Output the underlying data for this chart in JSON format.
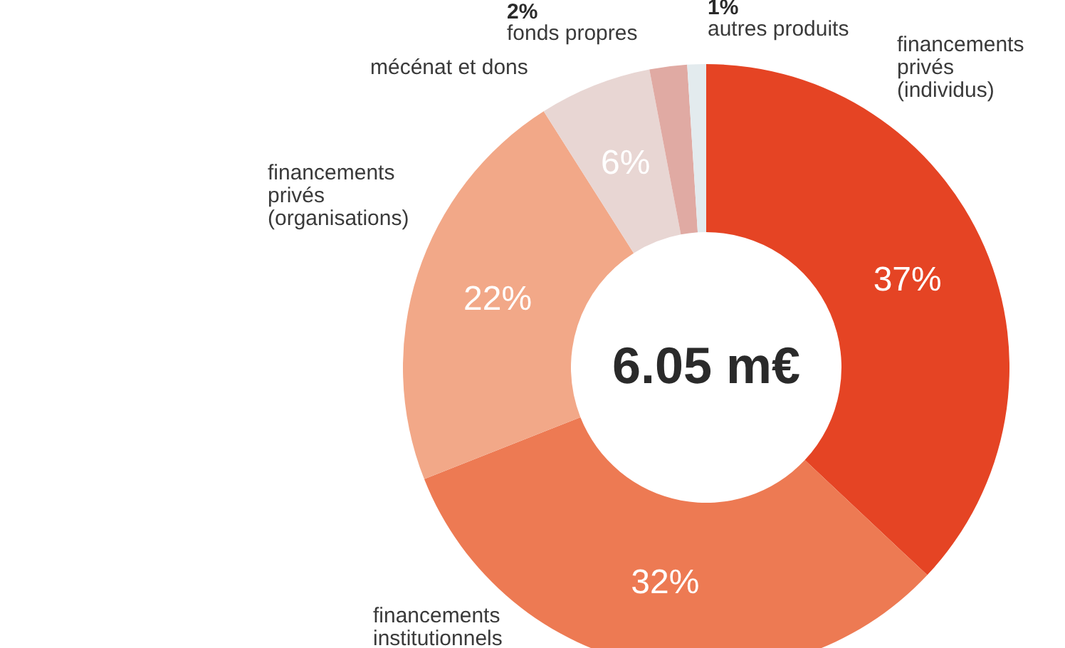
{
  "chart_data": {
    "type": "donut",
    "categories": [
      "financements privés (individus)",
      "financements institutionnels",
      "financements privés (organisations)",
      "mécénat et dons",
      "fonds propres",
      "autres produits"
    ],
    "values": [
      37,
      32,
      22,
      6,
      2,
      1
    ],
    "value_labels": [
      "37%",
      "32%",
      "22%",
      "6%",
      "2%",
      "1%"
    ],
    "colors": [
      "#e54424",
      "#ed7a53",
      "#f2a888",
      "#e8d6d3",
      "#e0aaa3",
      "#e3ebee"
    ],
    "annotations": [
      "6.05 m€"
    ]
  }
}
